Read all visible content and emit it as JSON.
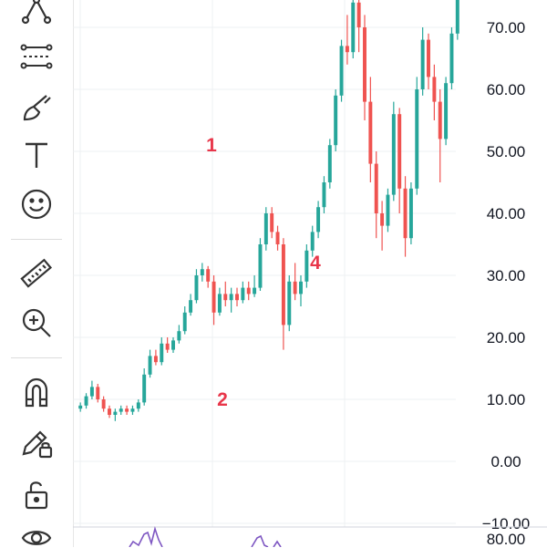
{
  "toolbar": {
    "tools": [
      {
        "name": "pattern-tool",
        "icon": "pattern-icon"
      },
      {
        "name": "trend-tool",
        "icon": "multi-line-icon"
      },
      {
        "name": "brush-tool",
        "icon": "brush-icon"
      },
      {
        "name": "text-tool",
        "icon": "text-icon"
      },
      {
        "name": "emoji-tool",
        "icon": "smiley-icon"
      },
      {
        "name": "ruler-tool",
        "icon": "ruler-icon"
      },
      {
        "name": "zoom-tool",
        "icon": "zoom-in-icon"
      },
      {
        "name": "magnet-tool",
        "icon": "magnet-icon"
      },
      {
        "name": "lock-drawings-tool",
        "icon": "pencil-lock-icon"
      },
      {
        "name": "unlock-tool",
        "icon": "unlock-icon"
      },
      {
        "name": "visibility-tool",
        "icon": "eye-icon"
      }
    ]
  },
  "chart_data": {
    "type": "candlestick",
    "colors": {
      "up": "#26a69a",
      "down": "#ef5350",
      "annotation": "#e8364a",
      "indicator": "#7e57c2",
      "grid": "#eef0f3",
      "axis_text": "#131722"
    },
    "ylim": [
      -10,
      78
    ],
    "y_ticks": [
      "70.00",
      "60.00",
      "50.00",
      "40.00",
      "30.00",
      "20.00",
      "10.00",
      "0.00",
      "−10.00"
    ],
    "indicator_tick": "80.00",
    "annotations": [
      {
        "text": "1",
        "price": 50
      },
      {
        "text": "2",
        "price": 9
      },
      {
        "text": "4",
        "price": 31
      }
    ],
    "candles": [
      [
        8.5,
        9.5,
        8,
        9
      ],
      [
        9,
        11,
        8.5,
        10.5
      ],
      [
        10.5,
        13,
        10,
        12
      ],
      [
        12,
        12.5,
        9.5,
        10
      ],
      [
        10,
        10.5,
        8,
        8.5
      ],
      [
        8.5,
        9,
        7,
        7.5
      ],
      [
        7.5,
        8.5,
        6.5,
        8
      ],
      [
        8,
        9,
        7.5,
        8.5
      ],
      [
        8.5,
        9,
        7.5,
        8
      ],
      [
        8,
        9,
        7.5,
        8.5
      ],
      [
        8.5,
        10,
        8,
        9.5
      ],
      [
        9.5,
        15,
        9,
        14
      ],
      [
        14,
        18,
        13.5,
        17
      ],
      [
        17,
        18,
        15.5,
        16
      ],
      [
        16,
        20,
        15.5,
        19
      ],
      [
        19,
        20,
        17.5,
        18
      ],
      [
        18,
        20,
        17.5,
        19.5
      ],
      [
        19.5,
        22,
        19,
        21
      ],
      [
        21,
        25,
        20.5,
        24
      ],
      [
        24,
        27,
        23.5,
        26
      ],
      [
        26,
        31,
        25.5,
        30
      ],
      [
        30,
        32,
        29,
        31
      ],
      [
        31,
        31.5,
        28,
        29
      ],
      [
        29,
        30,
        22,
        24
      ],
      [
        24,
        28,
        23.5,
        27
      ],
      [
        27,
        29,
        25,
        26
      ],
      [
        26,
        28,
        24,
        27
      ],
      [
        27,
        28,
        25,
        26
      ],
      [
        26,
        29,
        25.5,
        28
      ],
      [
        28,
        29,
        26,
        27
      ],
      [
        27,
        30,
        26.5,
        28
      ],
      [
        28,
        36,
        27.5,
        35
      ],
      [
        35,
        41,
        34,
        40
      ],
      [
        40,
        41,
        36,
        37
      ],
      [
        37,
        38,
        34,
        35
      ],
      [
        35,
        36,
        18,
        22
      ],
      [
        22,
        30,
        21,
        29
      ],
      [
        29,
        32,
        26,
        27
      ],
      [
        27,
        30,
        25,
        29
      ],
      [
        29,
        35,
        28,
        34
      ],
      [
        34,
        38,
        33,
        37
      ],
      [
        37,
        42,
        36,
        41
      ],
      [
        41,
        46,
        40,
        45
      ],
      [
        45,
        52,
        44,
        51
      ],
      [
        51,
        60,
        50,
        59
      ],
      [
        59,
        68,
        58,
        67
      ],
      [
        67,
        72,
        64,
        66
      ],
      [
        66,
        75,
        65,
        74
      ],
      [
        74,
        78,
        66,
        70
      ],
      [
        70,
        72,
        55,
        58
      ],
      [
        58,
        62,
        45,
        48
      ],
      [
        48,
        50,
        36,
        40
      ],
      [
        40,
        42,
        34,
        38
      ],
      [
        38,
        44,
        37,
        43
      ],
      [
        43,
        58,
        42,
        56
      ],
      [
        56,
        57,
        40,
        44
      ],
      [
        44,
        46,
        33,
        36
      ],
      [
        36,
        45,
        35,
        44
      ],
      [
        44,
        62,
        43,
        60
      ],
      [
        60,
        70,
        59,
        68
      ],
      [
        68,
        69,
        60,
        62
      ],
      [
        62,
        64,
        55,
        58
      ],
      [
        58,
        60,
        45,
        52
      ],
      [
        52,
        62,
        51,
        61
      ],
      [
        61,
        70,
        60,
        69
      ],
      [
        69,
        78,
        68,
        77
      ]
    ]
  }
}
